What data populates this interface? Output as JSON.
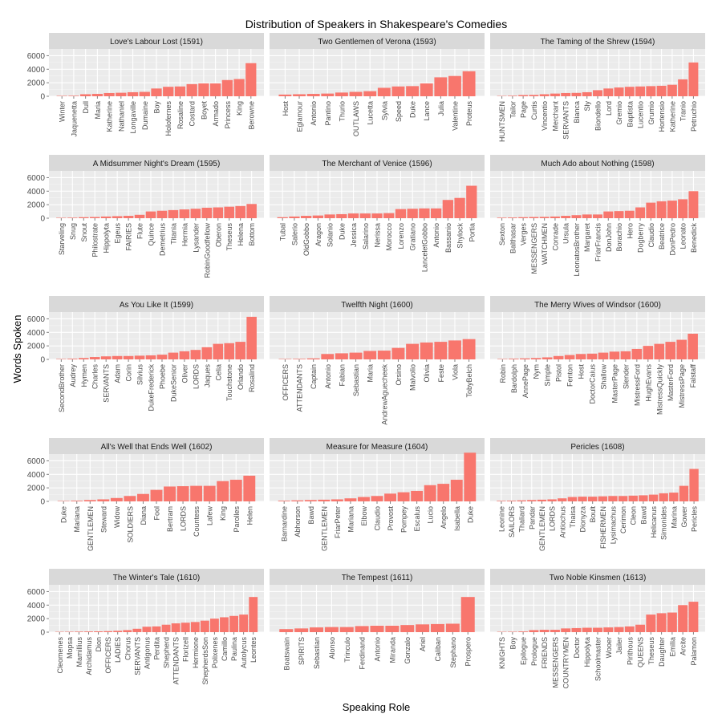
{
  "chart_data": {
    "type": "bar",
    "title": "Distribution of Speakers in Shakespeare's Comedies",
    "xlabel": "Speaking Role",
    "ylabel": "Words Spoken",
    "ylim": [
      0,
      7000
    ],
    "yticks": [
      0,
      2000,
      4000,
      6000
    ],
    "grid": true,
    "colors": {
      "bar": "#f8766d",
      "panel_bg": "#ebebeb",
      "strip_bg": "#d9d9d9",
      "grid_major": "#ffffff",
      "grid_minor": "#f5f5f5"
    },
    "panels": [
      {
        "title": "Love's Labour Lost (1591)",
        "categories": [
          "Winter",
          "Jaquenetta",
          "Dull",
          "Maria",
          "Katherine",
          "Nathaniel",
          "Longaville",
          "Dumaine",
          "Boy",
          "Holofernes",
          "Rosaline",
          "Costard",
          "Boyet",
          "Armado",
          "Princess",
          "King",
          "Berowne"
        ],
        "values": [
          60,
          80,
          300,
          350,
          480,
          520,
          600,
          650,
          1150,
          1400,
          1450,
          1800,
          1900,
          1900,
          2400,
          2550,
          4900
        ]
      },
      {
        "title": "Two Gentlemen of Verona (1593)",
        "categories": [
          "Host",
          "Eglamour",
          "Antonio",
          "Pantino",
          "Thurio",
          "OUTLAWS",
          "Lucetta",
          "Sylvia",
          "Speed",
          "Duke",
          "Lance",
          "Julia",
          "Valentine",
          "Proteus"
        ],
        "values": [
          250,
          300,
          350,
          400,
          550,
          650,
          750,
          1250,
          1450,
          1500,
          1900,
          2800,
          3000,
          3700
        ]
      },
      {
        "title": "The Taming of the Shrew (1594)",
        "categories": [
          "HUNTSMEN",
          "Tailor",
          "Page",
          "Curtis",
          "Vincentio",
          "Merchant",
          "SERVANTS",
          "Bianca",
          "Sly",
          "Biondello",
          "Lord",
          "Gremio",
          "Baptista",
          "Lucentio",
          "Grumio",
          "Hortensio",
          "Katherine",
          "Tranio",
          "Petruchio"
        ],
        "values": [
          50,
          80,
          180,
          200,
          300,
          400,
          480,
          500,
          600,
          900,
          1150,
          1300,
          1400,
          1450,
          1500,
          1550,
          1700,
          2500,
          5000
        ]
      },
      {
        "title": "A Midsummer Night's Dream (1595)",
        "categories": [
          "Starveling",
          "Snug",
          "Snout",
          "Philostrate",
          "Hippolyta",
          "Egeus",
          "FAIRIES",
          "Flute",
          "Quince",
          "Demetrius",
          "Titania",
          "Hermia",
          "Lysander",
          "RobinGoodfellow",
          "Oberon",
          "Theseus",
          "Helena",
          "Bottom"
        ],
        "values": [
          60,
          80,
          150,
          180,
          250,
          300,
          350,
          500,
          1000,
          1100,
          1200,
          1300,
          1400,
          1550,
          1600,
          1700,
          1800,
          2100
        ]
      },
      {
        "title": "The Merchant of Venice (1596)",
        "categories": [
          "Tubal",
          "Salerio",
          "OldGobbo",
          "Aragon",
          "Solanio",
          "Duke",
          "Jessica",
          "Salarino",
          "Nerissa",
          "Morocco",
          "Lorenzo",
          "Gratiano",
          "LanceletGobbo",
          "Antonio",
          "Bassanio",
          "Shylock",
          "Portia"
        ],
        "values": [
          150,
          250,
          350,
          400,
          550,
          600,
          700,
          700,
          700,
          750,
          1350,
          1400,
          1450,
          1450,
          2700,
          3000,
          4800
        ]
      },
      {
        "title": "Much Ado about Nothing (1598)",
        "categories": [
          "Sexton",
          "Balthasar",
          "Verges",
          "MESSENGERS",
          "WATCHMEN",
          "Conrade",
          "Ursula",
          "LeonatosBrother",
          "Margaret",
          "FriarFrancis",
          "DonJohn",
          "Borachio",
          "Hero",
          "Dogberry",
          "Claudio",
          "Beatrice",
          "DonPedro",
          "Leonato",
          "Benedick"
        ],
        "values": [
          80,
          100,
          150,
          180,
          200,
          250,
          350,
          450,
          550,
          550,
          1000,
          1050,
          1100,
          1600,
          2300,
          2500,
          2600,
          2800,
          4000
        ]
      },
      {
        "title": "As You Like It (1599)",
        "categories": [
          "SecondBrother",
          "Audrey",
          "Hymen",
          "Charles",
          "SERVANTS",
          "Adam",
          "Corin",
          "Silvius",
          "DukeFrederick",
          "Phoebe",
          "DukeSenior",
          "Oliver",
          "LORDS",
          "Jaques",
          "Celia",
          "Touchstone",
          "Orlando",
          "Rosalind"
        ],
        "values": [
          60,
          100,
          200,
          350,
          450,
          500,
          500,
          550,
          600,
          700,
          1000,
          1200,
          1400,
          1800,
          2300,
          2400,
          2600,
          6300
        ]
      },
      {
        "title": "Twelfth Night (1600)",
        "categories": [
          "OFFICERS",
          "ATTENDANTS",
          "Captain",
          "Antonio",
          "Fabian",
          "Sebastian",
          "Maria",
          "AndrewAguecheek",
          "Orsino",
          "Malvolio",
          "Olivia",
          "Feste",
          "Viola",
          "TobyBelch"
        ],
        "values": [
          60,
          80,
          150,
          800,
          900,
          1000,
          1250,
          1300,
          1700,
          2300,
          2500,
          2600,
          2800,
          3000
        ]
      },
      {
        "title": "The Merry Wives of Windsor (1600)",
        "categories": [
          "Robin",
          "Bardolph",
          "AnnePage",
          "Nym",
          "Simple",
          "Pistol",
          "Fenton",
          "Host",
          "DoctorCaius",
          "Shallow",
          "MasterPage",
          "Slender",
          "MistressFord",
          "HughEvans",
          "MistressQuickly",
          "MasterFord",
          "MistressPage",
          "Falstaff"
        ],
        "values": [
          60,
          100,
          150,
          200,
          300,
          500,
          650,
          800,
          850,
          1000,
          1150,
          1200,
          1550,
          2000,
          2300,
          2600,
          2900,
          3800
        ]
      },
      {
        "title": "All's Well that Ends Well (1602)",
        "categories": [
          "Duke",
          "Mariana",
          "GENTLEMEN",
          "Steward",
          "Widow",
          "SOLDIERS",
          "Diana",
          "Fool",
          "Bertram",
          "LORDS",
          "Countess",
          "Lafew",
          "King",
          "Parolles",
          "Helen"
        ],
        "values": [
          60,
          100,
          200,
          300,
          500,
          800,
          1100,
          1700,
          2200,
          2250,
          2300,
          2300,
          3000,
          3200,
          3800
        ]
      },
      {
        "title": "Measure for Measure (1604)",
        "categories": [
          "Barnardine",
          "Abhorson",
          "Bawd",
          "GENTLEMEN",
          "FriarPeter",
          "Mariana",
          "Elbow",
          "Claudio",
          "Provost",
          "Pompey",
          "Escalus",
          "Lucio",
          "Angelo",
          "Isabella",
          "Duke"
        ],
        "values": [
          100,
          150,
          200,
          250,
          300,
          450,
          650,
          800,
          1150,
          1350,
          1550,
          2400,
          2600,
          3200,
          7200
        ]
      },
      {
        "title": "Pericles (1608)",
        "categories": [
          "Leonine",
          "SAILORS",
          "Thaliard",
          "Pandar",
          "GENTLEMEN",
          "LORDS",
          "Antiochus",
          "Thaisa",
          "Dionyza",
          "Boult",
          "FISHERMEN",
          "Lysimachus",
          "Cerimon",
          "Cleon",
          "Bawd",
          "Helicanus",
          "Simonides",
          "Marina",
          "Gower",
          "Pericles"
        ],
        "values": [
          80,
          100,
          150,
          200,
          250,
          300,
          450,
          650,
          700,
          700,
          750,
          800,
          800,
          850,
          900,
          1000,
          1200,
          1300,
          2300,
          4800
        ]
      },
      {
        "title": "The Winter's Tale (1610)",
        "categories": [
          "Cleomenes",
          "Mopsa",
          "Mamillius",
          "Archidamus",
          "Dion",
          "OFFICERS",
          "LADIES",
          "Chorus",
          "SERVANTS",
          "Antigonus",
          "Perdita",
          "Shepherd",
          "ATTENDANTS",
          "Florizell",
          "Hermione",
          "ShepherdsSon",
          "Polixenes",
          "Camillo",
          "Paulina",
          "Autolycus",
          "Leontes"
        ],
        "values": [
          50,
          60,
          80,
          100,
          120,
          150,
          200,
          300,
          500,
          800,
          850,
          1100,
          1300,
          1400,
          1500,
          1700,
          2000,
          2200,
          2400,
          2600,
          5200
        ]
      },
      {
        "title": "The Tempest (1611)",
        "categories": [
          "Boatswain",
          "SPIRITS",
          "Sebastian",
          "Alonso",
          "Trinculo",
          "Ferdinand",
          "Antonio",
          "Miranda",
          "Gonzalo",
          "Ariel",
          "Caliban",
          "Stephano",
          "Prospero"
        ],
        "values": [
          450,
          550,
          700,
          750,
          750,
          900,
          950,
          950,
          1050,
          1150,
          1200,
          1250,
          5200
        ]
      },
      {
        "title": "Two Noble Kinsmen (1613)",
        "categories": [
          "KNIGHTS",
          "Boy",
          "Epilogue",
          "Prologue",
          "FRIENDS",
          "MESSENGERS",
          "COUNTRYMEN",
          "Doctor",
          "Hippolyta",
          "Schoolmaster",
          "Wooer",
          "Jailer",
          "Pirithous",
          "QUEENS",
          "Theseus",
          "Daughter",
          "Emilia",
          "Arcite",
          "Palamon"
        ],
        "values": [
          50,
          60,
          100,
          300,
          350,
          350,
          550,
          600,
          650,
          650,
          700,
          750,
          850,
          1100,
          2600,
          2800,
          2900,
          4000,
          4500
        ]
      }
    ]
  }
}
